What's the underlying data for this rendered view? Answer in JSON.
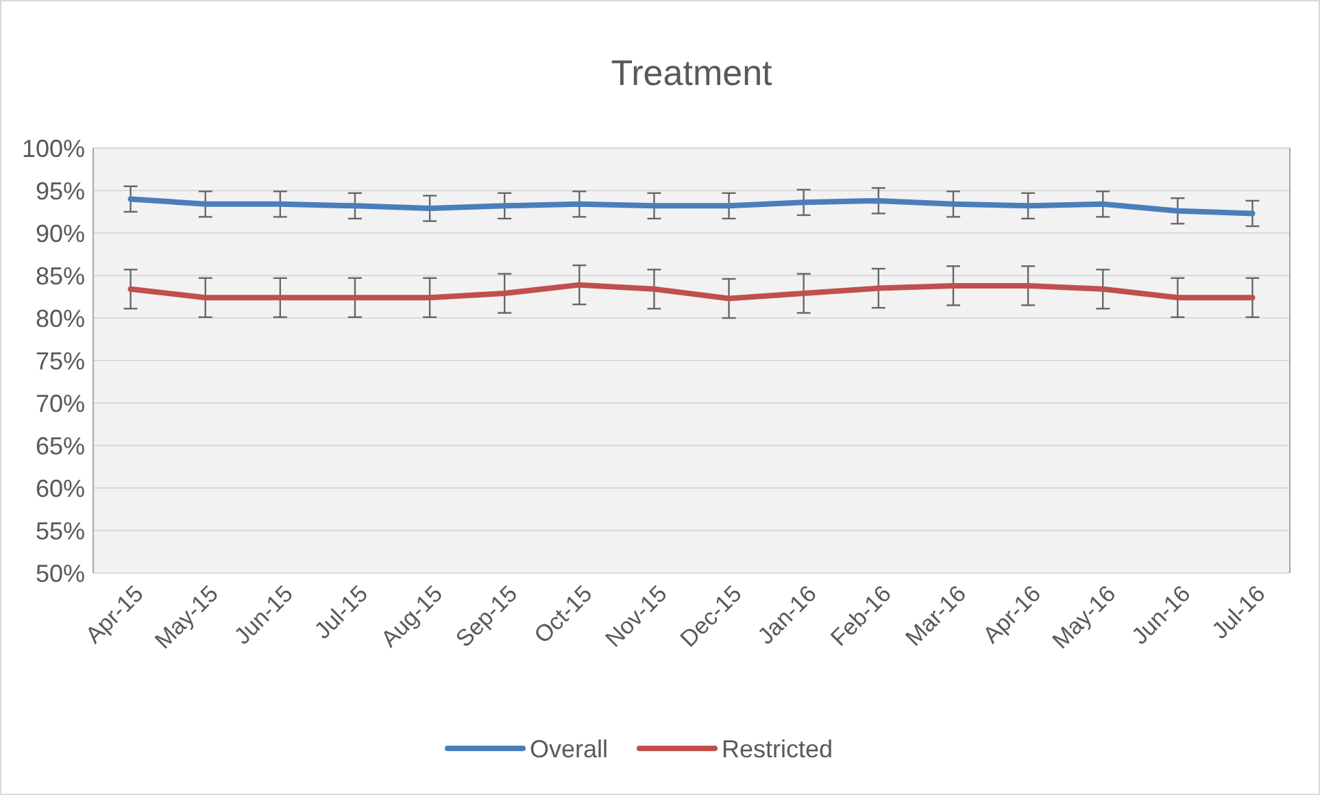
{
  "chart_data": {
    "type": "line",
    "title": "Treatment",
    "categories": [
      "Apr-15",
      "May-15",
      "Jun-15",
      "Jul-15",
      "Aug-15",
      "Sep-15",
      "Oct-15",
      "Nov-15",
      "Dec-15",
      "Jan-16",
      "Feb-16",
      "Mar-16",
      "Apr-16",
      "May-16",
      "Jun-16",
      "Jul-16"
    ],
    "series": [
      {
        "name": "Overall",
        "color": "#4a7ebb",
        "values": [
          94.0,
          93.4,
          93.4,
          93.2,
          92.9,
          93.2,
          93.4,
          93.2,
          93.2,
          93.6,
          93.8,
          93.4,
          93.2,
          93.4,
          92.6,
          92.3
        ],
        "errors": [
          1.5,
          1.5,
          1.5,
          1.5,
          1.5,
          1.5,
          1.5,
          1.5,
          1.5,
          1.5,
          1.5,
          1.5,
          1.5,
          1.5,
          1.5,
          1.5
        ]
      },
      {
        "name": "Restricted",
        "color": "#c0504d",
        "values": [
          83.4,
          82.4,
          82.4,
          82.4,
          82.4,
          82.9,
          83.9,
          83.4,
          82.3,
          82.9,
          83.5,
          83.8,
          83.8,
          83.4,
          82.4,
          82.4
        ],
        "errors": [
          2.3,
          2.3,
          2.3,
          2.3,
          2.3,
          2.3,
          2.3,
          2.3,
          2.3,
          2.3,
          2.3,
          2.3,
          2.3,
          2.3,
          2.3,
          2.3
        ]
      }
    ],
    "ylim": [
      50,
      100
    ],
    "yticks": [
      {
        "value": 50,
        "label": "50%"
      },
      {
        "value": 55,
        "label": "55%"
      },
      {
        "value": 60,
        "label": "60%"
      },
      {
        "value": 65,
        "label": "65%"
      },
      {
        "value": 70,
        "label": "70%"
      },
      {
        "value": 75,
        "label": "75%"
      },
      {
        "value": 80,
        "label": "80%"
      },
      {
        "value": 85,
        "label": "85%"
      },
      {
        "value": 90,
        "label": "90%"
      },
      {
        "value": 95,
        "label": "95%"
      },
      {
        "value": 100,
        "label": "100%"
      }
    ],
    "grid": "y",
    "legend": "bottom",
    "marker": "none",
    "line_style": "solid"
  }
}
